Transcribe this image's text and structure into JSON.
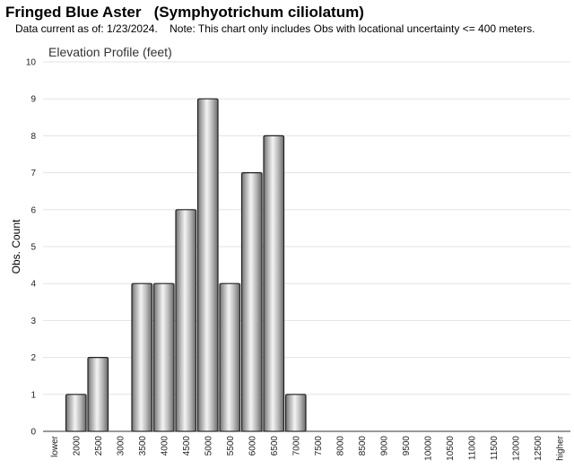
{
  "page": {
    "title": "Fringed Blue Aster   (Symphyotrichum ciliolatum)",
    "subtitle": "Data current as of: 1/23/2024.    Note: This chart only includes Obs with locational uncertainty <= 400 meters."
  },
  "chart_data": {
    "type": "bar",
    "title": "Elevation Profile (feet)",
    "xlabel": "",
    "ylabel": "Obs. Count",
    "ylim": [
      0,
      10
    ],
    "yticks": [
      0,
      1,
      2,
      3,
      4,
      5,
      6,
      7,
      8,
      9,
      10
    ],
    "grid": true,
    "legend": "none",
    "bar_color": "#b0b0b0",
    "categories": [
      "lower",
      "2000",
      "2500",
      "3000",
      "3500",
      "4000",
      "4500",
      "5000",
      "5500",
      "6000",
      "6500",
      "7000",
      "7500",
      "8000",
      "8500",
      "9000",
      "9500",
      "10000",
      "10500",
      "11000",
      "11500",
      "12000",
      "12500",
      "higher"
    ],
    "values": [
      0,
      1,
      2,
      0,
      4,
      4,
      6,
      9,
      4,
      7,
      8,
      1,
      0,
      0,
      0,
      0,
      0,
      0,
      0,
      0,
      0,
      0,
      0,
      0
    ]
  }
}
